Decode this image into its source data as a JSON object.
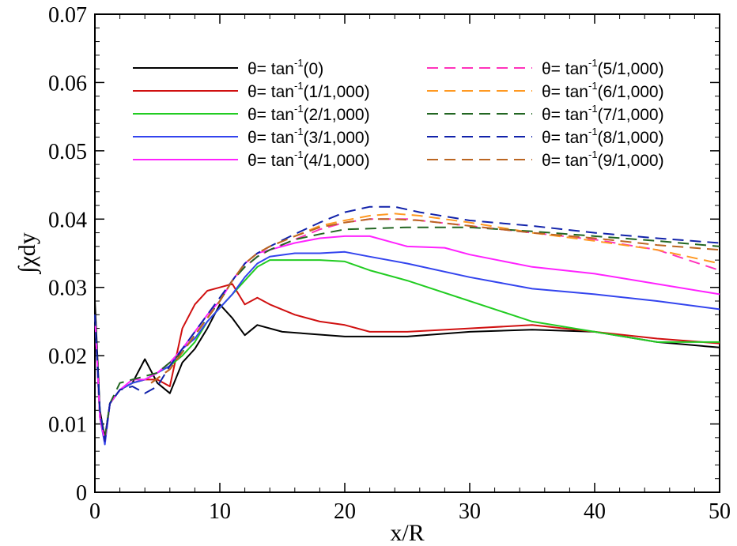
{
  "chart_data": {
    "type": "line",
    "title": "",
    "xlabel": "x/R",
    "ylabel": "∫χdy",
    "xlim": [
      0,
      50
    ],
    "ylim": [
      0,
      0.07
    ],
    "xticks": [
      "0",
      "10",
      "20",
      "30",
      "40",
      "50"
    ],
    "yticks": [
      "0",
      "0.01",
      "0.02",
      "0.03",
      "0.04",
      "0.05",
      "0.06",
      "0.07"
    ],
    "grid": false,
    "legend_position": "top",
    "series": [
      {
        "name": "θ= tan-1(0)",
        "label_main": "θ= tan",
        "label_sup": "-1",
        "label_arg": "(0)",
        "color": "#000000",
        "dash": "solid",
        "x": [
          0,
          0.4,
          0.8,
          1.2,
          2,
          3,
          4,
          5,
          6,
          7,
          8,
          9,
          10,
          11,
          12,
          13,
          15,
          20,
          25,
          30,
          35,
          40,
          45,
          50
        ],
        "y": [
          0.028,
          0.012,
          0.008,
          0.013,
          0.015,
          0.016,
          0.0195,
          0.016,
          0.0145,
          0.019,
          0.021,
          0.024,
          0.0275,
          0.0255,
          0.023,
          0.0245,
          0.0235,
          0.0228,
          0.0228,
          0.0235,
          0.0238,
          0.0235,
          0.022,
          0.0212
        ]
      },
      {
        "name": "θ= tan-1(1/1,000)",
        "label_main": "θ= tan",
        "label_sup": "-1",
        "label_arg": "(1/1,000)",
        "color": "#d01010",
        "dash": "solid",
        "x": [
          0,
          0.4,
          0.8,
          1.2,
          2,
          3,
          4,
          5,
          6,
          7,
          8,
          9,
          10,
          11,
          12,
          13,
          14,
          16,
          18,
          20,
          22,
          25,
          30,
          35,
          40,
          45,
          50
        ],
        "y": [
          0.026,
          0.011,
          0.0075,
          0.013,
          0.015,
          0.016,
          0.0165,
          0.0165,
          0.0155,
          0.024,
          0.0275,
          0.0295,
          0.03,
          0.0305,
          0.0275,
          0.0285,
          0.0275,
          0.026,
          0.025,
          0.0245,
          0.0235,
          0.0235,
          0.024,
          0.0245,
          0.0235,
          0.0225,
          0.0218
        ]
      },
      {
        "name": "θ= tan-1(2/1,000)",
        "label_main": "θ= tan",
        "label_sup": "-1",
        "label_arg": "(2/1,000)",
        "color": "#22cc22",
        "dash": "solid",
        "x": [
          0,
          0.4,
          0.8,
          1.2,
          2,
          3,
          4,
          5,
          6,
          7,
          8,
          9,
          10,
          11,
          12,
          13,
          14,
          16,
          18,
          20,
          22,
          25,
          30,
          35,
          40,
          45,
          50
        ],
        "y": [
          0.026,
          0.011,
          0.0075,
          0.013,
          0.015,
          0.016,
          0.0165,
          0.0175,
          0.0185,
          0.02,
          0.022,
          0.025,
          0.027,
          0.029,
          0.031,
          0.033,
          0.034,
          0.034,
          0.034,
          0.0338,
          0.0325,
          0.031,
          0.028,
          0.025,
          0.0235,
          0.022,
          0.022
        ]
      },
      {
        "name": "θ= tan-1(3/1,000)",
        "label_main": "θ= tan",
        "label_sup": "-1",
        "label_arg": "(3/1,000)",
        "color": "#3344ee",
        "dash": "solid",
        "x": [
          0,
          0.4,
          0.8,
          1.2,
          2,
          3,
          4,
          5,
          6,
          7,
          8,
          9,
          10,
          11,
          12,
          13,
          14,
          16,
          18,
          20,
          22,
          25,
          30,
          35,
          40,
          45,
          50
        ],
        "y": [
          0.026,
          0.011,
          0.007,
          0.013,
          0.015,
          0.016,
          0.0165,
          0.0175,
          0.0185,
          0.021,
          0.0225,
          0.025,
          0.027,
          0.029,
          0.0315,
          0.0335,
          0.0345,
          0.035,
          0.035,
          0.0352,
          0.0345,
          0.0335,
          0.0315,
          0.0298,
          0.029,
          0.028,
          0.0268
        ]
      },
      {
        "name": "θ= tan-1(4/1,000)",
        "label_main": "θ= tan",
        "label_sup": "-1",
        "label_arg": "(4/1,000)",
        "color": "#ff22ff",
        "dash": "solid",
        "x": [
          0,
          0.4,
          0.8,
          1.2,
          2,
          3,
          4,
          5,
          6,
          7,
          8,
          9,
          10,
          11,
          12,
          13,
          14,
          16,
          18,
          20,
          22,
          25,
          28,
          30,
          35,
          40,
          45,
          50
        ],
        "y": [
          0.026,
          0.011,
          0.0075,
          0.013,
          0.015,
          0.0165,
          0.0165,
          0.0175,
          0.019,
          0.021,
          0.0235,
          0.026,
          0.028,
          0.031,
          0.0335,
          0.035,
          0.0355,
          0.0365,
          0.0372,
          0.0375,
          0.0375,
          0.036,
          0.0358,
          0.0348,
          0.033,
          0.032,
          0.0305,
          0.029
        ]
      },
      {
        "name": "θ= tan-1(5/1,000)",
        "label_main": "θ= tan",
        "label_sup": "-1",
        "label_arg": "(5/1,000)",
        "color": "#ff33bb",
        "dash": "dash",
        "x": [
          4.5,
          6,
          7,
          8,
          9,
          10,
          11,
          12,
          13,
          14,
          16,
          18,
          20,
          22,
          25,
          30,
          35,
          40,
          45,
          50
        ],
        "y": [
          0.016,
          0.018,
          0.0205,
          0.023,
          0.0255,
          0.028,
          0.031,
          0.033,
          0.0345,
          0.0355,
          0.037,
          0.0385,
          0.0395,
          0.04,
          0.04,
          0.039,
          0.038,
          0.037,
          0.0355,
          0.0325
        ]
      },
      {
        "name": "θ= tan-1(6/1,000)",
        "label_main": "θ= tan",
        "label_sup": "-1",
        "label_arg": "(6/1,000)",
        "color": "#ff9922",
        "dash": "dash",
        "x": [
          4.5,
          6,
          7,
          8,
          9,
          10,
          11,
          12,
          13,
          14,
          16,
          18,
          20,
          22,
          24,
          26,
          30,
          35,
          40,
          45,
          50
        ],
        "y": [
          0.016,
          0.018,
          0.0205,
          0.023,
          0.0255,
          0.028,
          0.031,
          0.0335,
          0.035,
          0.036,
          0.0375,
          0.039,
          0.0398,
          0.0405,
          0.0408,
          0.0405,
          0.0395,
          0.038,
          0.0368,
          0.0355,
          0.0335
        ]
      },
      {
        "name": "θ= tan-1(7/1,000)",
        "label_main": "θ= tan",
        "label_sup": "-1",
        "label_arg": "(7/1,000)",
        "color": "#226622",
        "dash": "dash",
        "x": [
          0,
          0.4,
          0.8,
          1.2,
          2,
          3,
          4,
          5,
          6,
          7,
          8,
          9,
          10,
          11,
          12,
          13,
          14,
          16,
          18,
          20,
          25,
          30,
          35,
          40,
          45,
          50
        ],
        "y": [
          0.026,
          0.012,
          0.008,
          0.013,
          0.016,
          0.0165,
          0.017,
          0.0175,
          0.019,
          0.0205,
          0.023,
          0.0255,
          0.028,
          0.031,
          0.033,
          0.0345,
          0.0355,
          0.037,
          0.0378,
          0.0385,
          0.0388,
          0.0388,
          0.0382,
          0.0375,
          0.0368,
          0.036
        ]
      },
      {
        "name": "θ= tan-1(8/1,000)",
        "label_main": "θ= tan",
        "label_sup": "-1",
        "label_arg": "(8/1,000)",
        "color": "#1122aa",
        "dash": "dash",
        "x": [
          0,
          0.4,
          0.8,
          1.2,
          2,
          3,
          4,
          5,
          6,
          7,
          8,
          9,
          10,
          11,
          12,
          13,
          14,
          16,
          18,
          20,
          22,
          24,
          26,
          30,
          35,
          40,
          45,
          50
        ],
        "y": [
          0.026,
          0.012,
          0.0075,
          0.013,
          0.015,
          0.0155,
          0.0145,
          0.0155,
          0.0185,
          0.021,
          0.0235,
          0.026,
          0.0285,
          0.031,
          0.0335,
          0.035,
          0.036,
          0.0378,
          0.0395,
          0.041,
          0.0418,
          0.0418,
          0.041,
          0.0398,
          0.039,
          0.038,
          0.0372,
          0.0365
        ]
      },
      {
        "name": "θ= tan-1(9/1,000)",
        "label_main": "θ= tan",
        "label_sup": "-1",
        "label_arg": "(9/1,000)",
        "color": "#bb6622",
        "dash": "dash",
        "x": [
          4.5,
          6,
          7,
          8,
          9,
          10,
          11,
          12,
          13,
          14,
          16,
          18,
          20,
          22,
          24,
          26,
          30,
          35,
          40,
          45,
          50
        ],
        "y": [
          0.016,
          0.018,
          0.0205,
          0.023,
          0.0255,
          0.028,
          0.031,
          0.0335,
          0.035,
          0.036,
          0.0375,
          0.0388,
          0.0395,
          0.04,
          0.04,
          0.0398,
          0.039,
          0.038,
          0.0372,
          0.0362,
          0.0355
        ]
      }
    ]
  }
}
